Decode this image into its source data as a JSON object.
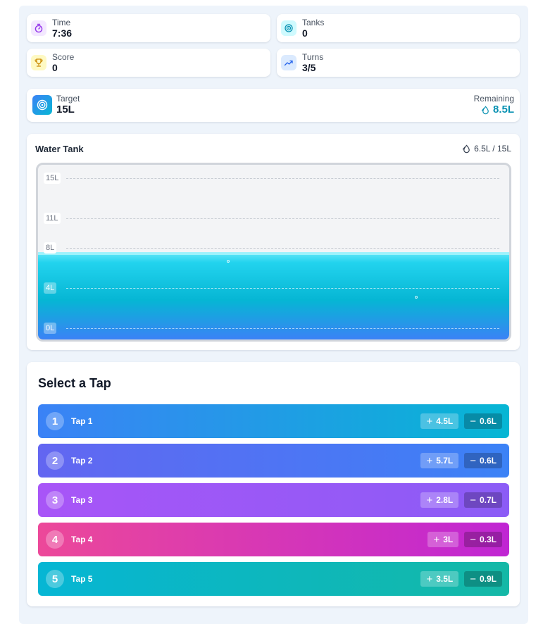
{
  "stats": {
    "time": {
      "label": "Time",
      "value": "7:36"
    },
    "tanks": {
      "label": "Tanks",
      "value": "0"
    },
    "score": {
      "label": "Score",
      "value": "0"
    },
    "turns": {
      "label": "Turns",
      "value": "3/5"
    }
  },
  "target": {
    "label": "Target",
    "value": "15L",
    "remaining_label": "Remaining",
    "remaining_value": "8.5L"
  },
  "tank": {
    "title": "Water Tank",
    "readout": "6.5L / 15L",
    "current_liters": 6.5,
    "capacity_liters": 15,
    "gridlines": [
      {
        "label": "15L",
        "liters": 15
      },
      {
        "label": "11L",
        "liters": 11
      },
      {
        "label": "8L",
        "liters": 8
      },
      {
        "label": "4L",
        "liters": 4
      },
      {
        "label": "0L",
        "liters": 0
      }
    ]
  },
  "taps": {
    "title": "Select a Tap",
    "items": [
      {
        "number": "1",
        "name": "Tap 1",
        "add": "4.5L",
        "sub": "0.6L",
        "gradient": [
          "#3b82f6",
          "#06b6d4"
        ]
      },
      {
        "number": "2",
        "name": "Tap 2",
        "add": "5.7L",
        "sub": "0.6L",
        "gradient": [
          "#6366f1",
          "#3b82f6"
        ]
      },
      {
        "number": "3",
        "name": "Tap 3",
        "add": "2.8L",
        "sub": "0.7L",
        "gradient": [
          "#a855f7",
          "#8b5cf6"
        ]
      },
      {
        "number": "4",
        "name": "Tap 4",
        "add": "3L",
        "sub": "0.3L",
        "gradient": [
          "#ec4899",
          "#c026d3"
        ]
      },
      {
        "number": "5",
        "name": "Tap 5",
        "add": "3.5L",
        "sub": "0.9L",
        "gradient": [
          "#06b6d4",
          "#14b8a6"
        ]
      }
    ]
  },
  "colors": {
    "remaining": "#0891b2",
    "accent": "#3b82f6"
  }
}
